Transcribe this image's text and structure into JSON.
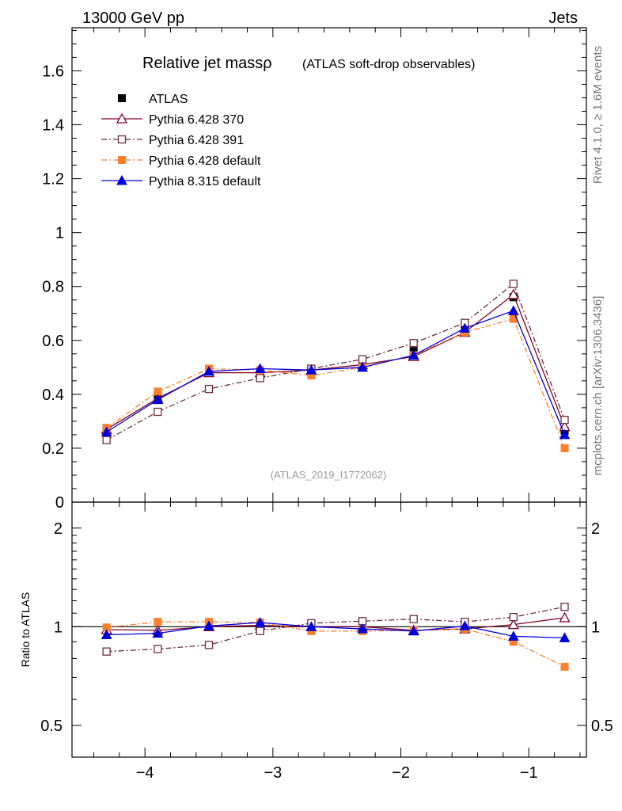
{
  "header": {
    "left": "13000 GeV pp",
    "right": "Jets"
  },
  "side_labels": {
    "rivet": "Rivet 4.1.0, ≥ 1.6M events",
    "mcplots": "mcplots.cern.ch [arXiv:1306.3436]"
  },
  "chart_data": [
    {
      "type": "line",
      "panel": "main",
      "title": "Relative jet massρ",
      "subtitle": "(ATLAS soft-drop observables)",
      "watermark": "(ATLAS_2019_I1772062)",
      "xlabel": "",
      "ylabel": "",
      "xlim": [
        -4.57,
        -0.55
      ],
      "ylim": [
        0,
        1.76
      ],
      "yticks": [
        0,
        0.2,
        0.4,
        0.6,
        0.8,
        1,
        1.2,
        1.4,
        1.6
      ],
      "ytick_labels": [
        "0",
        "0.2",
        "0.4",
        "0.6",
        "0.8",
        "1",
        "1.2",
        "1.4",
        "1.6"
      ],
      "x": [
        -4.3,
        -3.9,
        -3.5,
        -3.1,
        -2.7,
        -2.3,
        -1.9,
        -1.5,
        -1.12,
        -0.72
      ],
      "series": [
        {
          "name": "ATLAS",
          "color": "#000000",
          "marker": "square-filled",
          "line": "none",
          "values": [
            0.275,
            0.395,
            0.48,
            0.475,
            0.49,
            0.51,
            0.56,
            0.64,
            0.76,
            0.265
          ]
        },
        {
          "name": "Pythia 6.428 370",
          "color": "#800020",
          "marker": "triangle-open",
          "line": "solid",
          "values": [
            0.27,
            0.385,
            0.48,
            0.48,
            0.49,
            0.51,
            0.54,
            0.63,
            0.77,
            0.28
          ]
        },
        {
          "name": "Pythia 6.428 391",
          "color": "#6b2e3e",
          "marker": "square-open",
          "line": "dashdot",
          "values": [
            0.23,
            0.335,
            0.42,
            0.46,
            0.495,
            0.53,
            0.59,
            0.665,
            0.81,
            0.305
          ]
        },
        {
          "name": "Pythia 6.428 default",
          "color": "#ff7f2a",
          "marker": "square-filled",
          "line": "dashdot",
          "values": [
            0.275,
            0.41,
            0.495,
            0.49,
            0.47,
            0.5,
            0.545,
            0.63,
            0.68,
            0.2
          ]
        },
        {
          "name": "Pythia 8.315 default",
          "color": "#0000dd",
          "marker": "triangle-filled",
          "line": "solid",
          "values": [
            0.26,
            0.38,
            0.485,
            0.495,
            0.49,
            0.5,
            0.545,
            0.645,
            0.71,
            0.25
          ]
        }
      ]
    },
    {
      "type": "line",
      "panel": "ratio",
      "ylabel": "Ratio to ATLAS",
      "xlim": [
        -4.57,
        -0.55
      ],
      "ylim": [
        0.4,
        2.4
      ],
      "yscale": "log",
      "yticks": [
        0.5,
        1,
        2
      ],
      "ytick_labels": [
        "0.5",
        "1",
        "2"
      ],
      "xticks": [
        -4,
        -3,
        -2,
        -1
      ],
      "xtick_labels": [
        "−4",
        "−3",
        "−2",
        "−1"
      ],
      "x": [
        -4.3,
        -3.9,
        -3.5,
        -3.1,
        -2.7,
        -2.3,
        -1.9,
        -1.5,
        -1.12,
        -0.72
      ],
      "series": [
        {
          "name": "Pythia 6.428 370",
          "color": "#800020",
          "marker": "triangle-open",
          "line": "solid",
          "values": [
            0.98,
            0.975,
            1.0,
            1.01,
            1.0,
            1.0,
            0.975,
            0.985,
            1.015,
            1.065
          ]
        },
        {
          "name": "Pythia 6.428 391",
          "color": "#6b2e3e",
          "marker": "square-open",
          "line": "dashdot",
          "values": [
            0.84,
            0.855,
            0.88,
            0.97,
            1.025,
            1.04,
            1.055,
            1.035,
            1.07,
            1.15
          ]
        },
        {
          "name": "Pythia 6.428 default",
          "color": "#ff7f2a",
          "marker": "square-filled",
          "line": "dashdot",
          "values": [
            0.995,
            1.035,
            1.035,
            1.03,
            0.97,
            0.97,
            0.975,
            0.985,
            0.9,
            0.755
          ]
        },
        {
          "name": "Pythia 8.315 default",
          "color": "#0000dd",
          "marker": "triangle-filled",
          "line": "solid",
          "values": [
            0.945,
            0.955,
            1.005,
            1.03,
            1.0,
            0.985,
            0.97,
            1.005,
            0.935,
            0.925
          ]
        }
      ]
    }
  ]
}
